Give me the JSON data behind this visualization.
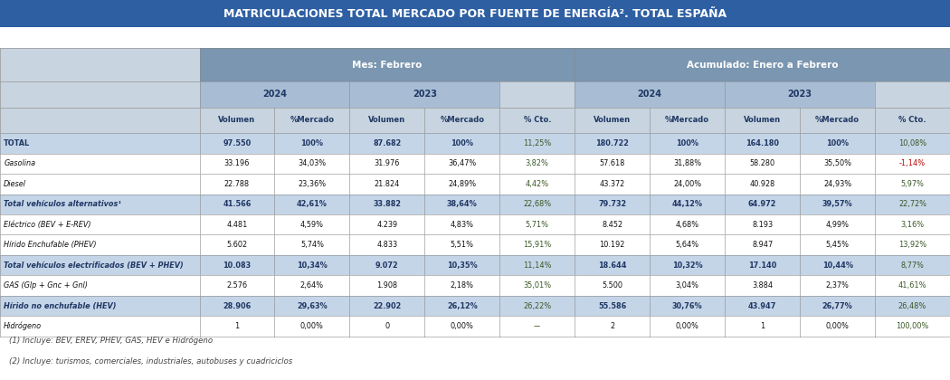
{
  "title": "MATRICULACIONES TOTAL MERCADO POR FUENTE DE ENERGÍA². TOTAL ESPAÑA",
  "header1_left": "Mes: Febrero",
  "header1_right": "Acumulado: Enero a Febrero",
  "col_headers": [
    "Volumen",
    "%Mercado",
    "Volumen",
    "%Mercado",
    "% Cto.",
    "Volumen",
    "%Mercado",
    "Volumen",
    "%Mercado",
    "% Cto."
  ],
  "rows": [
    {
      "label": "TOTAL",
      "bold": true,
      "italic": false,
      "bg": "blue_row",
      "values": [
        "97.550",
        "100%",
        "87.682",
        "100%",
        "11,25%",
        "180.722",
        "100%",
        "164.180",
        "100%",
        "10,08%"
      ],
      "cto_colors": [
        "green",
        "green"
      ]
    },
    {
      "label": "Gasolina",
      "bold": false,
      "italic": true,
      "bg": "white_row",
      "values": [
        "33.196",
        "34,03%",
        "31.976",
        "36,47%",
        "3,82%",
        "57.618",
        "31,88%",
        "58.280",
        "35,50%",
        "-1,14%"
      ],
      "cto_colors": [
        "green",
        "red"
      ]
    },
    {
      "label": "Diesel",
      "bold": false,
      "italic": true,
      "bg": "white_row",
      "values": [
        "22.788",
        "23,36%",
        "21.824",
        "24,89%",
        "4,42%",
        "43.372",
        "24,00%",
        "40.928",
        "24,93%",
        "5,97%"
      ],
      "cto_colors": [
        "green",
        "green"
      ]
    },
    {
      "label": "Total vehículos alternativos¹",
      "bold": true,
      "italic": true,
      "bg": "blue_row",
      "values": [
        "41.566",
        "42,61%",
        "33.882",
        "38,64%",
        "22,68%",
        "79.732",
        "44,12%",
        "64.972",
        "39,57%",
        "22,72%"
      ],
      "cto_colors": [
        "green",
        "green"
      ]
    },
    {
      "label": "Eléctrico (BEV + E-REV)",
      "bold": false,
      "italic": true,
      "bg": "white_row",
      "values": [
        "4.481",
        "4,59%",
        "4.239",
        "4,83%",
        "5,71%",
        "8.452",
        "4,68%",
        "8.193",
        "4,99%",
        "3,16%"
      ],
      "cto_colors": [
        "green",
        "green"
      ]
    },
    {
      "label": "Hírido Enchufable (PHEV)",
      "bold": false,
      "italic": true,
      "bg": "white_row",
      "values": [
        "5.602",
        "5,74%",
        "4.833",
        "5,51%",
        "15,91%",
        "10.192",
        "5,64%",
        "8.947",
        "5,45%",
        "13,92%"
      ],
      "cto_colors": [
        "green",
        "green"
      ]
    },
    {
      "label": "Total vehículos electrificados (BEV + PHEV)",
      "bold": true,
      "italic": true,
      "bg": "blue_row",
      "values": [
        "10.083",
        "10,34%",
        "9.072",
        "10,35%",
        "11,14%",
        "18.644",
        "10,32%",
        "17.140",
        "10,44%",
        "8,77%"
      ],
      "cto_colors": [
        "green",
        "green"
      ]
    },
    {
      "label": "GAS (Glp + Gnc + Gnl)",
      "bold": false,
      "italic": true,
      "bg": "white_row",
      "values": [
        "2.576",
        "2,64%",
        "1.908",
        "2,18%",
        "35,01%",
        "5.500",
        "3,04%",
        "3.884",
        "2,37%",
        "41,61%"
      ],
      "cto_colors": [
        "green",
        "green"
      ]
    },
    {
      "label": "Hírido no enchufable (HEV)",
      "bold": true,
      "italic": true,
      "bg": "blue_row",
      "values": [
        "28.906",
        "29,63%",
        "22.902",
        "26,12%",
        "26,22%",
        "55.586",
        "30,76%",
        "43.947",
        "26,77%",
        "26,48%"
      ],
      "cto_colors": [
        "green",
        "green"
      ]
    },
    {
      "label": "Hidrógeno",
      "bold": false,
      "italic": true,
      "bg": "white_row",
      "values": [
        "1",
        "0,00%",
        "0",
        "0,00%",
        "––",
        "2",
        "0,00%",
        "1",
        "0,00%",
        "100,00%"
      ],
      "cto_colors": [
        "green",
        "green"
      ]
    }
  ],
  "footnote1": "(1) Incluye: BEV, EREV, PHEV, GAS, HEV e Hidrógeno",
  "footnote2": "(2) Incluye: turismos, comerciales, industriales, autobuses y cuadriciclos",
  "colors": {
    "title_bg": "#2e5fa3",
    "header1_bg": "#7a96b0",
    "header2_bg": "#a8bdd4",
    "colheader_bg": "#c8d4df",
    "blue_row": "#c5d5e8",
    "white_row": "#ffffff",
    "text_dark": "#111111",
    "text_bold_blue": "#1f3864",
    "green": "#375623",
    "red": "#c00000",
    "title_text": "#ffffff",
    "grid_line": "#aaaaaa"
  }
}
